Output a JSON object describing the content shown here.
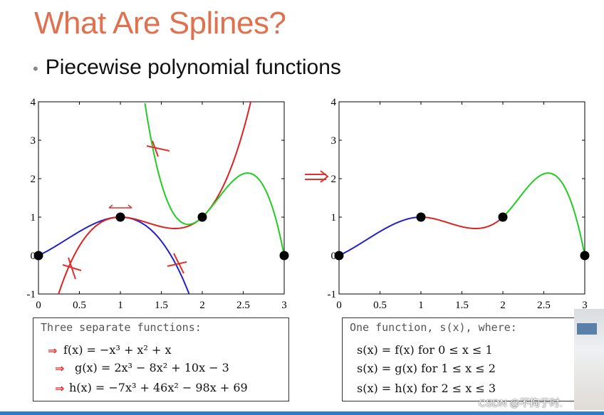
{
  "slide": {
    "title": "What Are Splines?",
    "bullet": "Piecewise polynomial functions",
    "watermark": "CSDN @不拘于时."
  },
  "left_box": {
    "heading": "Three separate functions:",
    "equations": [
      "f(x) = −x³ + x² + x",
      "g(x) = 2x³ − 8x² + 10x − 3",
      "h(x) = −7x³ + 46x² − 98x + 69"
    ]
  },
  "right_box": {
    "heading": "One function, s(x), where:",
    "equations": [
      "s(x) = f(x)   for   0 ≤ x ≤ 1",
      "s(x) = g(x)   for   1 ≤ x ≤ 2",
      "s(x) = h(x)   for   2 ≤ x ≤ 3"
    ]
  },
  "colors": {
    "f": "#2222cc",
    "g": "#dd2222",
    "h": "#22cc22",
    "title": "#e0714f",
    "annotation": "#e03030"
  },
  "chart_data": [
    {
      "type": "line",
      "xlim": [
        0,
        3
      ],
      "ylim": [
        -1,
        4
      ],
      "xticks": [
        "0",
        "0.5",
        "1",
        "1.5",
        "2",
        "2.5",
        "3"
      ],
      "yticks": [
        "-1",
        "0",
        "1",
        "2",
        "3",
        "4"
      ],
      "series": [
        {
          "fn": "f",
          "coef": [
            -1,
            1,
            1,
            0
          ],
          "domain": [
            0,
            1.88
          ],
          "color": "#2222cc"
        },
        {
          "fn": "g",
          "coef": [
            2,
            -8,
            10,
            -3
          ],
          "domain": [
            0.22,
            2.6
          ],
          "color": "#dd2222"
        },
        {
          "fn": "h",
          "coef": [
            -7,
            46,
            -98,
            69
          ],
          "domain": [
            1.3,
            3
          ],
          "color": "#22cc22"
        }
      ],
      "knots": [
        {
          "x": 0,
          "y": 0
        },
        {
          "x": 1,
          "y": 1
        },
        {
          "x": 2,
          "y": 1
        },
        {
          "x": 3,
          "y": 0
        }
      ]
    },
    {
      "type": "line",
      "xlim": [
        0,
        3
      ],
      "ylim": [
        -1,
        4
      ],
      "xticks": [
        "0",
        "0.5",
        "1",
        "1.5",
        "2",
        "2.5",
        "3"
      ],
      "yticks": [
        "-1",
        "0",
        "1",
        "2",
        "3",
        "4"
      ],
      "series": [
        {
          "fn": "f",
          "coef": [
            -1,
            1,
            1,
            0
          ],
          "domain": [
            0,
            1
          ],
          "color": "#2222cc"
        },
        {
          "fn": "g",
          "coef": [
            2,
            -8,
            10,
            -3
          ],
          "domain": [
            1,
            2
          ],
          "color": "#dd2222"
        },
        {
          "fn": "h",
          "coef": [
            -7,
            46,
            -98,
            69
          ],
          "domain": [
            2,
            3
          ],
          "color": "#22cc22"
        }
      ],
      "knots": [
        {
          "x": 0,
          "y": 0
        },
        {
          "x": 1,
          "y": 1
        },
        {
          "x": 2,
          "y": 1
        },
        {
          "x": 3,
          "y": 0
        }
      ]
    }
  ]
}
